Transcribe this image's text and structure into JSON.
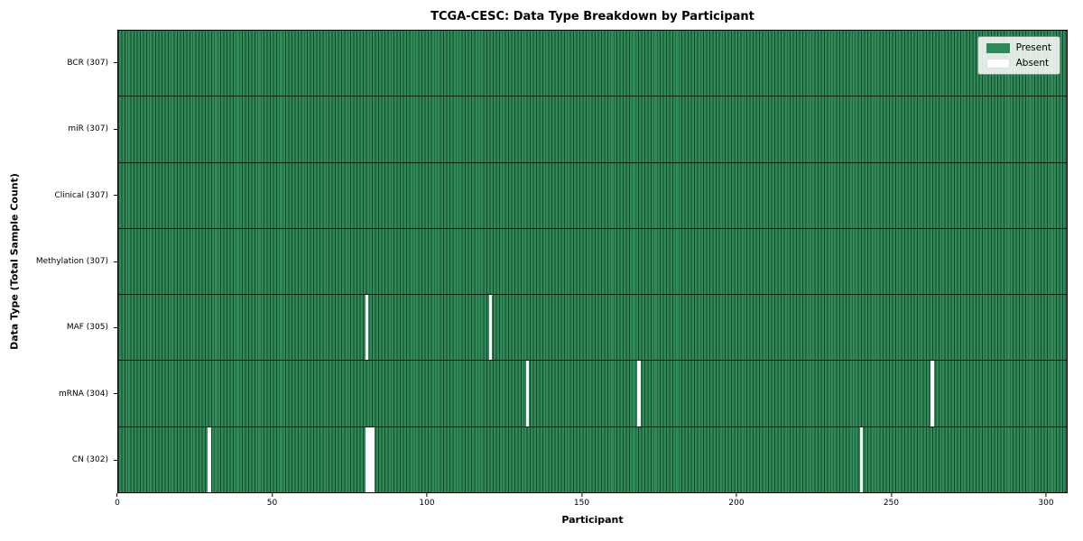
{
  "chart_data": {
    "type": "heatmap",
    "title": "TCGA-CESC: Data Type Breakdown by Participant",
    "xlabel": "Participant",
    "ylabel": "Data Type (Total Sample Count)",
    "n_participants": 307,
    "xlim": [
      0,
      307
    ],
    "x_ticks": [
      0,
      50,
      100,
      150,
      200,
      250,
      300
    ],
    "rows": [
      {
        "label": "BCR (307)",
        "data_type": "BCR",
        "total": 307,
        "absent_participants": []
      },
      {
        "label": "miR (307)",
        "data_type": "miR",
        "total": 307,
        "absent_participants": []
      },
      {
        "label": "Clinical (307)",
        "data_type": "Clinical",
        "total": 307,
        "absent_participants": []
      },
      {
        "label": "Methylation (307)",
        "data_type": "Methylation",
        "total": 307,
        "absent_participants": []
      },
      {
        "label": "MAF (305)",
        "data_type": "MAF",
        "total": 305,
        "absent_participants": [
          80,
          120
        ]
      },
      {
        "label": "mRNA (304)",
        "data_type": "mRNA",
        "total": 304,
        "absent_participants": [
          132,
          168,
          263
        ]
      },
      {
        "label": "CN (302)",
        "data_type": "CN",
        "total": 302,
        "absent_participants": [
          29,
          80,
          81,
          82,
          240
        ]
      }
    ],
    "legend": {
      "position": "upper right",
      "items": [
        {
          "label": "Present",
          "color": "#2e8b57"
        },
        {
          "label": "Absent",
          "color": "#ffffff"
        }
      ]
    },
    "colors": {
      "present": "#2e8b57",
      "absent": "#ffffff",
      "cell_edge": "rgba(0,0,0,0.5)",
      "row_divider": "#111111",
      "plot_border": "#000000",
      "legend_bg": "rgba(255,255,255,0.85)",
      "legend_border": "#8a8a8a"
    }
  }
}
